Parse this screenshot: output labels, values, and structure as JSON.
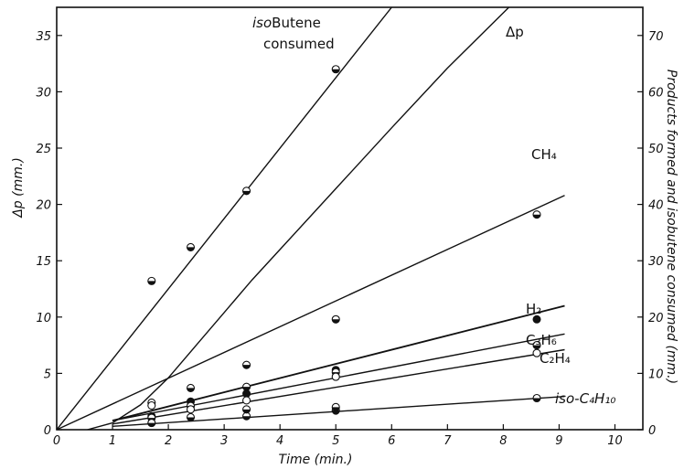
{
  "chart_data": {
    "type": "line",
    "xlabel": "Time (min.)",
    "ylabel_left": "Δp (mm.)",
    "ylabel_right": "Products formed and isobutene consumed (mm.)",
    "xlim": [
      0,
      10.5
    ],
    "ylim_left": [
      0,
      37.5
    ],
    "ylim_right": [
      0,
      75
    ],
    "x_ticks": [
      "0",
      "1",
      "2",
      "3",
      "4",
      "5",
      "6",
      "7",
      "8",
      "9",
      "10"
    ],
    "y_left_ticks": [
      "0",
      "5",
      "10",
      "15",
      "20",
      "25",
      "30",
      "35"
    ],
    "y_right_ticks": [
      "0",
      "10",
      "20",
      "30",
      "40",
      "50",
      "60",
      "70"
    ],
    "grid": false,
    "series": [
      {
        "key": "isobutene",
        "name_prefix": "iso",
        "name_main": "Butene",
        "name_line2": "consumed",
        "line_x": [
          0,
          6.0
        ],
        "line_y_right": [
          0,
          75
        ],
        "points": [
          [
            1.7,
            26.4
          ],
          [
            2.4,
            32.4
          ],
          [
            3.4,
            42.4
          ],
          [
            5.0,
            64.0
          ]
        ],
        "marker": "half"
      },
      {
        "key": "dp",
        "name": "Δp",
        "curve_x": [
          0.55,
          1.0,
          1.5,
          2.0,
          2.5,
          3.0,
          3.5,
          4.0,
          5.0,
          6.0,
          7.0,
          8.1
        ],
        "curve_y_left": [
          0,
          0.6,
          2.2,
          4.6,
          7.5,
          10.4,
          13.3,
          16.0,
          21.4,
          26.8,
          32.1,
          37.5
        ],
        "marker": "none"
      },
      {
        "key": "ch4",
        "name": "CH₄",
        "line_x": [
          0,
          9.1
        ],
        "line_y_right": [
          0,
          41.6
        ],
        "points": [
          [
            1.7,
            4.8
          ],
          [
            2.4,
            7.4
          ],
          [
            3.4,
            11.5
          ],
          [
            5.0,
            19.6
          ],
          [
            8.6,
            38.2
          ]
        ],
        "marker": "half"
      },
      {
        "key": "h2",
        "name": "H₂",
        "line_x": [
          1.0,
          9.1
        ],
        "line_y_right": [
          1.6,
          22.0
        ],
        "points": [
          [
            1.7,
            2.4
          ],
          [
            2.4,
            5.0
          ],
          [
            3.4,
            6.4
          ],
          [
            5.0,
            10.6
          ],
          [
            8.6,
            19.6
          ]
        ],
        "marker": "filled"
      },
      {
        "key": "c3h6",
        "name": "C₃H₆",
        "line_x": [
          1.0,
          9.1
        ],
        "line_y_right": [
          1.6,
          17.0
        ],
        "points": [
          [
            1.7,
            2.1
          ],
          [
            2.4,
            4.2
          ],
          [
            3.4,
            7.6
          ],
          [
            5.0,
            10.2
          ],
          [
            8.6,
            15.0
          ]
        ],
        "marker": "half"
      },
      {
        "key": "c2h4",
        "name": "C₂H₄",
        "line_x": [
          1.0,
          9.1
        ],
        "line_y_right": [
          1.0,
          14.2
        ],
        "points": [
          [
            1.7,
            4.3
          ],
          [
            2.4,
            3.6
          ],
          [
            3.4,
            5.2
          ],
          [
            5.0,
            9.4
          ],
          [
            8.6,
            13.6
          ]
        ],
        "marker": "open"
      },
      {
        "key": "isoc4h10",
        "name": "iso-C₄H₁₀",
        "line_x": [
          1.0,
          9.1
        ],
        "line_y_right": [
          0.6,
          5.9
        ],
        "points": [
          [
            1.7,
            1.2
          ],
          [
            2.4,
            2.2
          ],
          [
            3.4,
            2.4
          ],
          [
            3.4,
            3.6
          ],
          [
            5.0,
            3.4
          ],
          [
            5.0,
            4.0
          ],
          [
            8.6,
            5.6
          ]
        ],
        "marker": "half"
      }
    ]
  }
}
